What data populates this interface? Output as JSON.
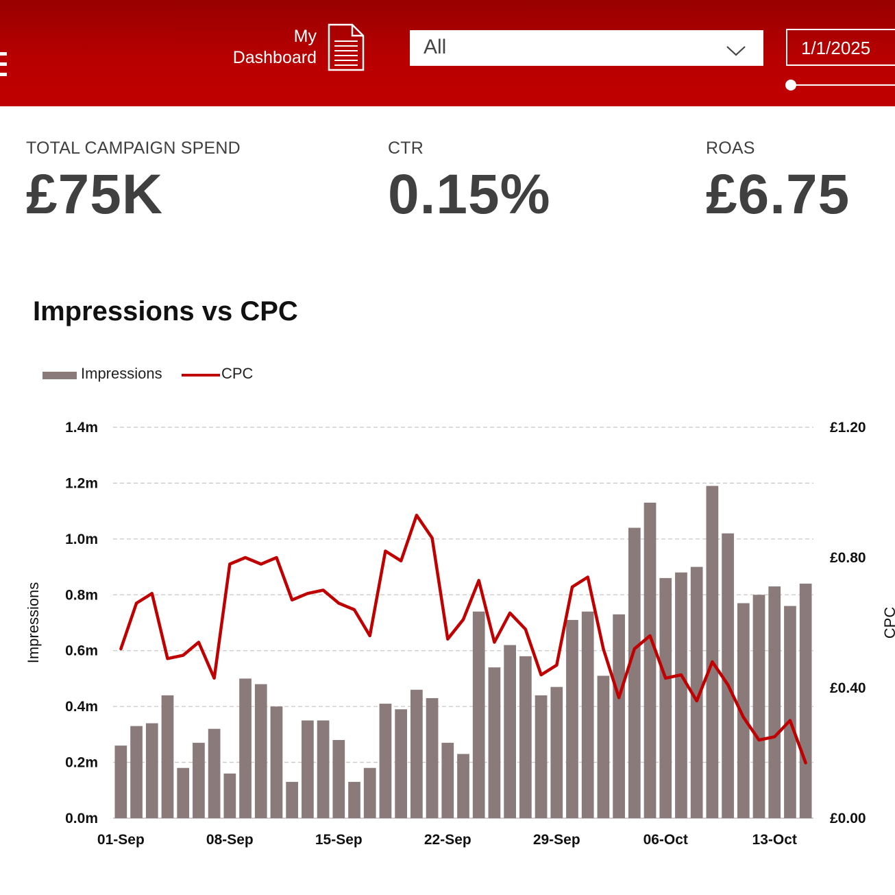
{
  "header": {
    "dashboard_label_line1": "My",
    "dashboard_label_line2": "Dashboard",
    "filter_value": "All",
    "date_value": "1/1/2025",
    "colors": {
      "bar_background": "#b30000",
      "accent": "#ffffff"
    }
  },
  "kpis": [
    {
      "label": "TOTAL CAMPAIGN SPEND",
      "value": "£75K"
    },
    {
      "label": "CTR",
      "value": "0.15%"
    },
    {
      "label": "ROAS",
      "value": "£6.75"
    }
  ],
  "chart_data": {
    "type": "bar",
    "title": "Impressions vs CPC",
    "ylabel": "Impressions",
    "y2label": "CPC",
    "ylim": [
      0,
      1.4
    ],
    "y2lim": [
      0,
      1.2
    ],
    "yticks": [
      "0.0m",
      "0.2m",
      "0.4m",
      "0.6m",
      "0.8m",
      "1.0m",
      "1.2m",
      "1.4m"
    ],
    "y2ticks": [
      "£0.00",
      "£0.40",
      "£0.80",
      "£1.20"
    ],
    "xticks": [
      "01-Sep",
      "08-Sep",
      "15-Sep",
      "22-Sep",
      "29-Sep",
      "06-Oct",
      "13-Oct"
    ],
    "grid": true,
    "legend_position": "top-left",
    "colors": {
      "impressions": "#8a7a7a",
      "cpc": "#c00000"
    },
    "x": [
      "01-Sep",
      "02-Sep",
      "03-Sep",
      "04-Sep",
      "05-Sep",
      "06-Sep",
      "07-Sep",
      "08-Sep",
      "09-Sep",
      "10-Sep",
      "11-Sep",
      "12-Sep",
      "13-Sep",
      "14-Sep",
      "15-Sep",
      "16-Sep",
      "17-Sep",
      "18-Sep",
      "19-Sep",
      "20-Sep",
      "21-Sep",
      "22-Sep",
      "23-Sep",
      "24-Sep",
      "25-Sep",
      "26-Sep",
      "27-Sep",
      "28-Sep",
      "29-Sep",
      "30-Sep",
      "01-Oct",
      "02-Oct",
      "03-Oct",
      "04-Oct",
      "05-Oct",
      "06-Oct",
      "07-Oct",
      "08-Oct",
      "09-Oct",
      "10-Oct",
      "11-Oct",
      "12-Oct",
      "13-Oct",
      "14-Oct",
      "15-Oct"
    ],
    "series": [
      {
        "name": "Impressions",
        "type": "bar",
        "axis": "left",
        "values": [
          0.26,
          0.33,
          0.34,
          0.44,
          0.18,
          0.27,
          0.32,
          0.16,
          0.5,
          0.48,
          0.4,
          0.13,
          0.35,
          0.35,
          0.28,
          0.13,
          0.18,
          0.41,
          0.39,
          0.46,
          0.43,
          0.27,
          0.23,
          0.74,
          0.54,
          0.62,
          0.58,
          0.44,
          0.47,
          0.71,
          0.74,
          0.51,
          0.73,
          1.04,
          1.13,
          0.86,
          0.88,
          0.9,
          1.19,
          1.02,
          0.77,
          0.8,
          0.83,
          0.76,
          0.84
        ]
      },
      {
        "name": "CPC",
        "type": "line",
        "axis": "right",
        "values": [
          0.52,
          0.66,
          0.69,
          0.49,
          0.5,
          0.54,
          0.43,
          0.78,
          0.8,
          0.78,
          0.8,
          0.67,
          0.69,
          0.7,
          0.66,
          0.64,
          0.56,
          0.82,
          0.79,
          0.93,
          0.86,
          0.55,
          0.61,
          0.73,
          0.54,
          0.63,
          0.58,
          0.44,
          0.47,
          0.71,
          0.74,
          0.52,
          0.37,
          0.52,
          0.56,
          0.43,
          0.44,
          0.36,
          0.48,
          0.41,
          0.31,
          0.24,
          0.25,
          0.3,
          0.17
        ]
      }
    ]
  }
}
